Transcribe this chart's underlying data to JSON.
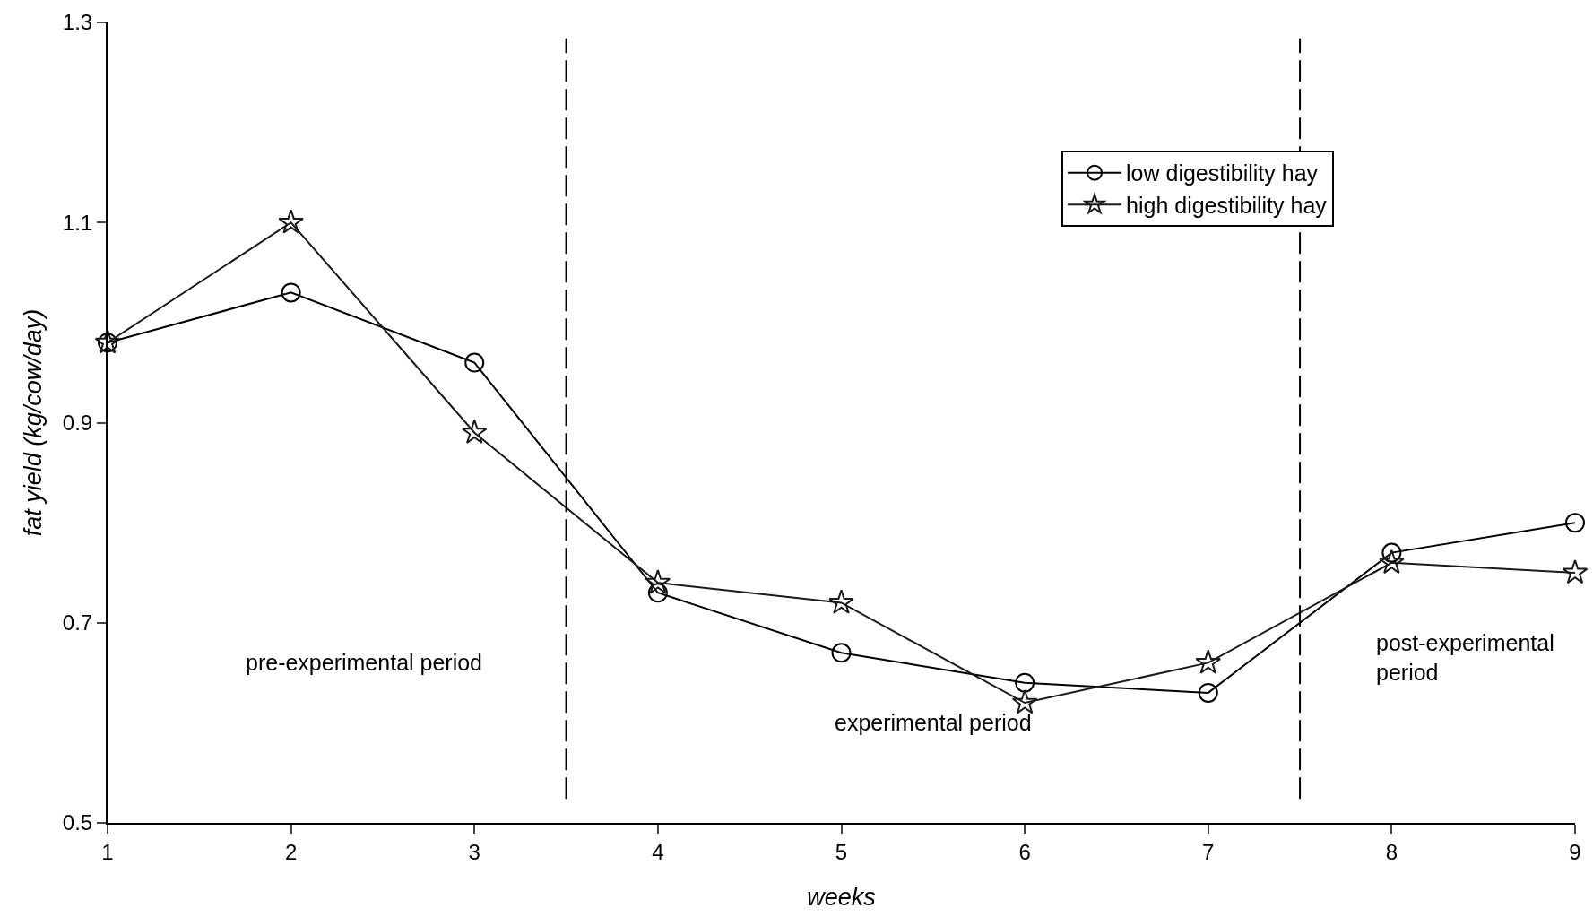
{
  "chart_data": {
    "type": "line",
    "xlabel": "weeks",
    "ylabel": "fat yield (kg/cow/day)",
    "x": [
      1,
      2,
      3,
      4,
      5,
      6,
      7,
      8,
      9
    ],
    "series": [
      {
        "name": "low digestibility hay",
        "color": "#000000",
        "marker": "circle",
        "values": [
          0.98,
          1.03,
          0.96,
          0.73,
          0.67,
          0.64,
          0.63,
          0.77,
          0.8
        ]
      },
      {
        "name": "high digestibility hay",
        "color": "#1a1a1a",
        "marker": "star",
        "values": [
          0.98,
          1.1,
          0.89,
          0.74,
          0.72,
          0.62,
          0.66,
          0.76,
          0.75
        ]
      }
    ],
    "xlim": [
      1,
      9
    ],
    "xticks": [
      1,
      2,
      3,
      4,
      5,
      6,
      7,
      8,
      9
    ],
    "ylim": [
      0.5,
      1.3
    ],
    "yticks": [
      {
        "value": 0.5,
        "label": "0.5"
      },
      {
        "value": 0.7,
        "label": "0.7"
      },
      {
        "value": 0.9,
        "label": "0.9"
      },
      {
        "value": 1.1,
        "label": "1.1"
      },
      {
        "value": 1.3,
        "label": "1.3"
      }
    ],
    "ref_lines": [
      {
        "axis": "x",
        "value": 3.5,
        "line_style": "dashed",
        "color": "#000000"
      },
      {
        "axis": "x",
        "value": 7.5,
        "line_style": "dashed",
        "color": "#000000"
      }
    ],
    "annotations": [
      "pre-experimental period",
      "experimental period",
      "post-experimental period"
    ],
    "grid": false,
    "legend": "top right",
    "line_style": "solid"
  }
}
